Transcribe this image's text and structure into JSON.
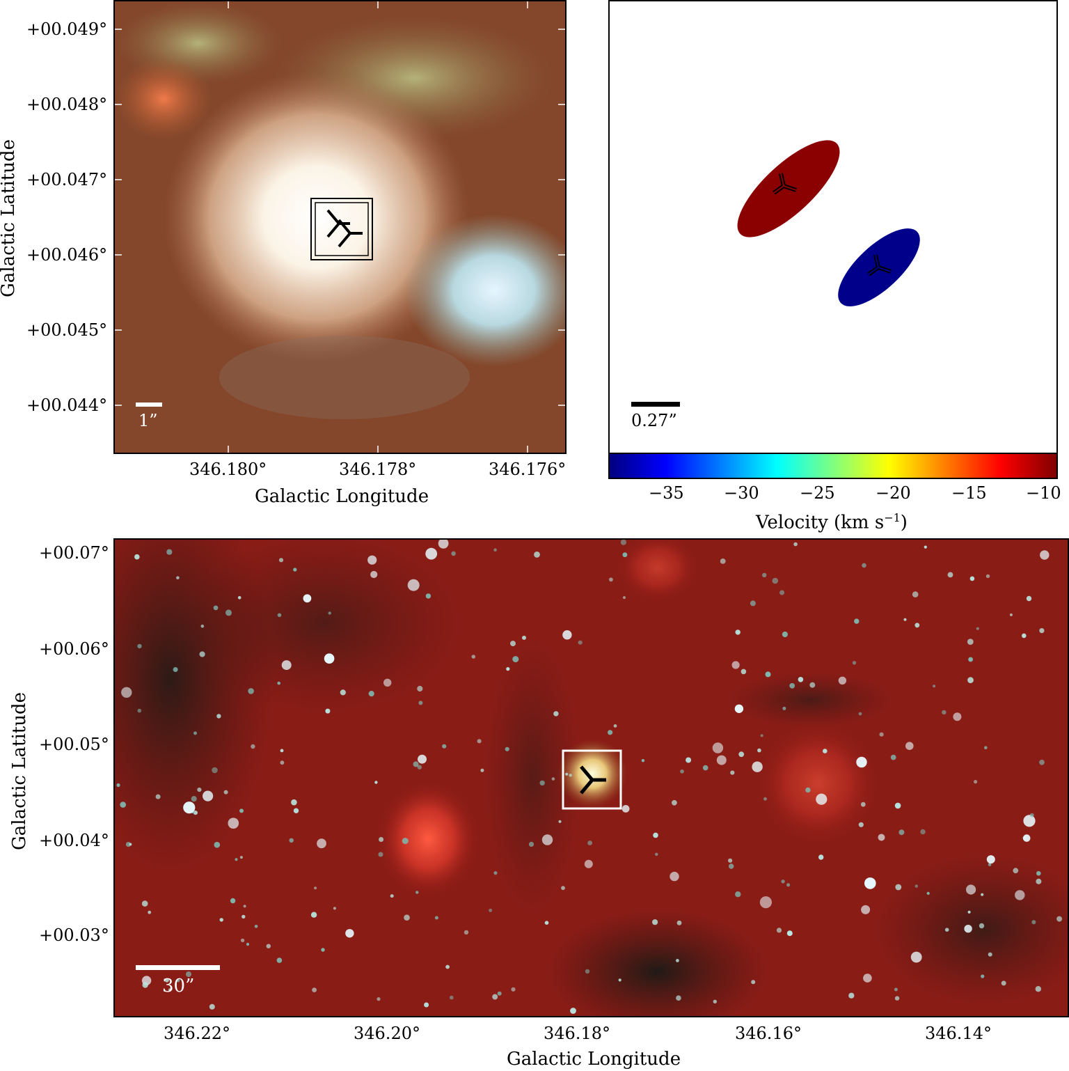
{
  "top_left": {
    "y_ticks": [
      "+00.049°",
      "+00.048°",
      "+00.047°",
      "+00.046°",
      "+00.045°",
      "+00.044°"
    ],
    "x_ticks": [
      "346.180°",
      "346.178°",
      "346.176°"
    ],
    "x_label": "Galactic Longitude",
    "y_label": "Galactic Latitude",
    "scale_bar": "1”"
  },
  "top_right": {
    "scale_bar": "0.27”",
    "colorbar_ticks": [
      "−35",
      "−30",
      "−25",
      "−20",
      "−15",
      "−10"
    ],
    "colorbar_label": "Velocity (km s",
    "colorbar_label_sup": "−1",
    "colorbar_label_close": ")",
    "sources": [
      {
        "velocity": -10,
        "color": "#8b0000"
      },
      {
        "velocity": -38,
        "color": "#00008b"
      }
    ],
    "colormap": [
      "#00007f",
      "#0000ff",
      "#007fff",
      "#00ffff",
      "#7fff7f",
      "#ffff00",
      "#ff7f00",
      "#ff0000",
      "#7f0000"
    ]
  },
  "bottom": {
    "y_ticks": [
      "+00.07°",
      "+00.06°",
      "+00.05°",
      "+00.04°",
      "+00.03°"
    ],
    "x_ticks": [
      "346.22°",
      "346.20°",
      "346.18°",
      "346.16°",
      "346.14°"
    ],
    "x_label": "Galactic Longitude",
    "y_label": "Galactic Latitude",
    "scale_bar": "30”"
  }
}
